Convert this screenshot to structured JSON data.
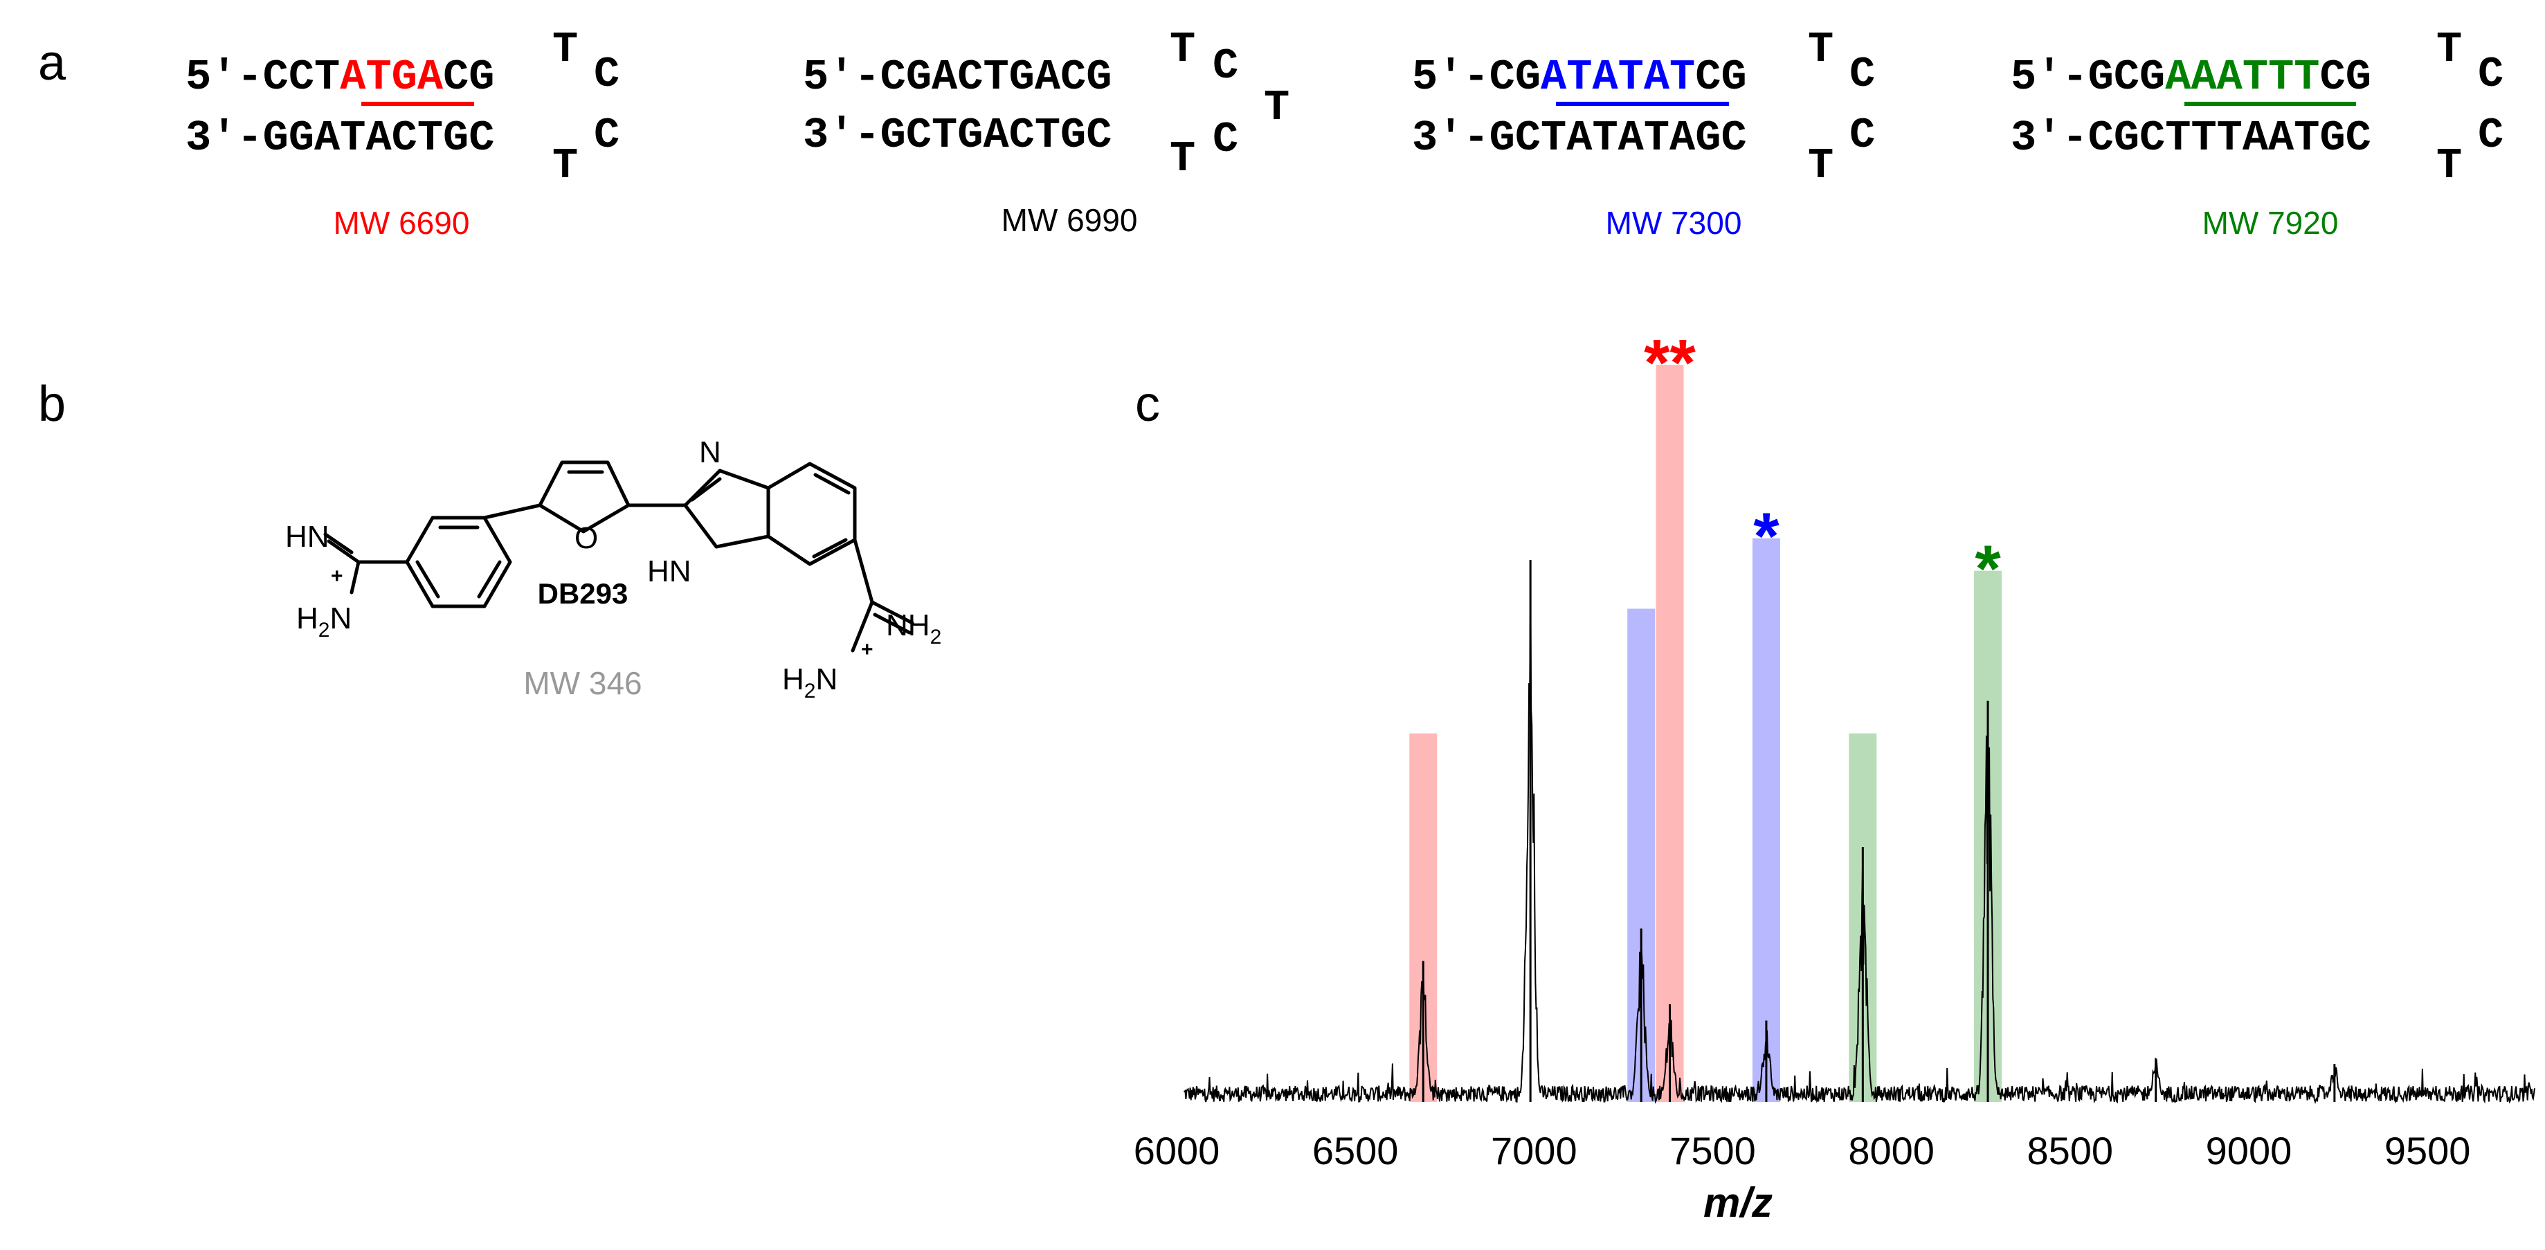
{
  "panels": {
    "a": "a",
    "b": "b",
    "c": "c"
  },
  "hairpins": [
    {
      "top_pre": "5′-CCT",
      "top_site": "ATGA",
      "top_post": "CG",
      "bottom": "3′-GGATACTGC",
      "loop": [
        "T",
        "C",
        "C",
        "T"
      ],
      "mw": "MW 6690",
      "color": "#ff0000"
    },
    {
      "top_pre": "5′-CGACTGACG",
      "top_site": "",
      "top_post": "",
      "bottom": "3′-GCTGACTGC",
      "loop": [
        "T",
        "C",
        "T",
        "C",
        "T"
      ],
      "mw": "MW 6990",
      "color": "#000000"
    },
    {
      "top_pre": "5′-CG",
      "top_site": "ATATAT",
      "top_post": "CG",
      "bottom": "3′-GCTATATAGC",
      "loop": [
        "T",
        "C",
        "C",
        "T"
      ],
      "mw": "MW 7300",
      "color": "#0000ff"
    },
    {
      "top_pre": "5′-GCG",
      "top_site": "AAATTT",
      "top_post": "CG",
      "bottom": "3′-CGCTTTAATGC",
      "loop": [
        "T",
        "C",
        "C",
        "T"
      ],
      "mw": "MW 7920",
      "color": "#008000"
    }
  ],
  "compound": {
    "name": "DB293",
    "mw": "MW 346",
    "mw_color": "#999999",
    "labels": {
      "hn_left": "HN",
      "h2n_left_h": "H",
      "h2n_left_sub": "2",
      "h2n_left_n": "N",
      "furan_o": "O",
      "benz_n": "N",
      "benz_hn": "HN",
      "nh2_n": "NH",
      "nh2_sub": "2",
      "h2n_right_h": "H",
      "h2n_right_sub": "2",
      "h2n_right_n": "N",
      "charge": "+"
    }
  },
  "chart_data": {
    "type": "line",
    "title": "",
    "xlabel": "m/z",
    "ylabel": "",
    "xlim": [
      6000,
      9800
    ],
    "ylim": [
      0,
      1.0
    ],
    "xticks": [
      6000,
      6500,
      7000,
      7500,
      8000,
      8500,
      9000,
      9500
    ],
    "grid": false,
    "legend": "none",
    "baseline_noise": 0.03,
    "peaks": [
      {
        "x": 6690,
        "y": 0.26,
        "color": "#ff0000",
        "label": ""
      },
      {
        "x": 6990,
        "y": 1.0,
        "color": "#000000",
        "label": ""
      },
      {
        "x": 7300,
        "y": 0.32,
        "color": "#0000ff",
        "label": ""
      },
      {
        "x": 7380,
        "y": 0.18,
        "color": "#ff0000",
        "label": ""
      },
      {
        "x": 7650,
        "y": 0.15,
        "color": "#0000ff",
        "label": ""
      },
      {
        "x": 7920,
        "y": 0.47,
        "color": "#008000",
        "label": ""
      },
      {
        "x": 8270,
        "y": 0.74,
        "color": "#008000",
        "label": ""
      },
      {
        "x": 8740,
        "y": 0.08,
        "color": "#000000",
        "label": ""
      },
      {
        "x": 9240,
        "y": 0.07,
        "color": "#000000",
        "label": ""
      }
    ],
    "highlights": [
      {
        "x": 6690,
        "height": 0.68,
        "color": "#ff0000"
      },
      {
        "x": 7300,
        "height": 0.91,
        "color": "#0000ff"
      },
      {
        "x": 7380,
        "height": 1.36,
        "color": "#ff0000"
      },
      {
        "x": 7650,
        "height": 1.04,
        "color": "#0000ff"
      },
      {
        "x": 7920,
        "height": 0.68,
        "color": "#008000"
      },
      {
        "x": 8270,
        "height": 0.98,
        "color": "#008000"
      }
    ],
    "annotations": [
      {
        "x": 7380,
        "text": "**",
        "color": "#ff0000"
      },
      {
        "x": 7650,
        "text": "*",
        "color": "#0000ff"
      },
      {
        "x": 8270,
        "text": "*",
        "color": "#008000"
      }
    ]
  }
}
